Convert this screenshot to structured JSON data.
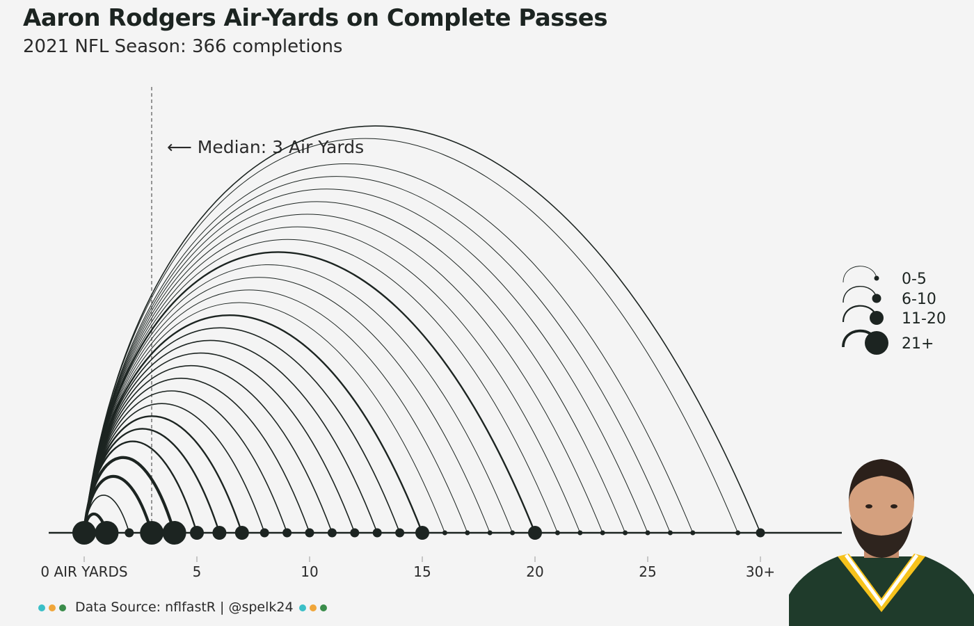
{
  "title": "Aaron Rodgers Air-Yards on Complete Passes",
  "subtitle": "2021 NFL Season: 366 completions",
  "annotation": "⟵ Median: 3 Air Yards",
  "caption": "Data Source: nflfastR | @spelk24",
  "colors": {
    "ink": "#1c2421",
    "background": "#f4f4f4",
    "dots": [
      "#3bbfc7",
      "#f0a63a",
      "#3a8c4a"
    ],
    "jersey_green": "#1f3b2b",
    "jersey_gold": "#f6c21c"
  },
  "chart_data": {
    "type": "arc",
    "x": [
      0,
      1,
      2,
      3,
      4,
      5,
      6,
      7,
      8,
      9,
      10,
      11,
      12,
      13,
      14,
      15,
      16,
      17,
      18,
      19,
      20,
      21,
      22,
      23,
      24,
      25,
      26,
      27,
      29,
      30
    ],
    "x_tick_labels": [
      "0 AIR YARDS",
      "5",
      "10",
      "15",
      "20",
      "25",
      "30+"
    ],
    "x_ticks": [
      0,
      5,
      10,
      15,
      20,
      25,
      30
    ],
    "median": 3,
    "origin": 0,
    "size_bins": [
      "0-5",
      "6-10",
      "11-20",
      "21+"
    ],
    "bin_index": [
      3,
      3,
      1,
      3,
      3,
      2,
      2,
      2,
      1,
      1,
      1,
      1,
      1,
      1,
      1,
      2,
      0,
      0,
      0,
      0,
      2,
      0,
      0,
      0,
      0,
      0,
      0,
      0,
      0,
      1
    ]
  }
}
